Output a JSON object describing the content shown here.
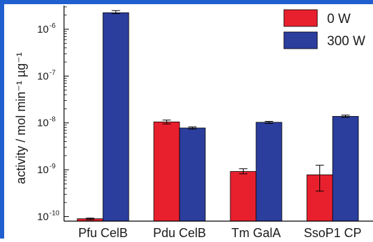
{
  "chart_data": {
    "type": "bar",
    "ylabel": "activity / mol min⁻¹ µg⁻¹",
    "yscale": "log",
    "ylim": [
      8e-11,
      3.2e-06
    ],
    "ytick_values": [
      1e-10,
      1e-09,
      1e-08,
      1e-07,
      1e-06
    ],
    "ytick_exponents": [
      "-10",
      "-9",
      "-8",
      "-7",
      "-6"
    ],
    "ytick_base": "10",
    "categories": [
      "Pfu CelB",
      "Pdu CelB",
      "Tm GalA",
      "SsoP1 CP"
    ],
    "series": [
      {
        "name": "0 W",
        "color": "#e8202e",
        "values": [
          9e-11,
          1.05e-08,
          9.2e-10,
          7.8e-10
        ],
        "err_low": [
          8.6e-11,
          9.5e-09,
          8.2e-10,
          3.5e-10
        ],
        "err_high": [
          9.3e-11,
          1.15e-08,
          1.05e-09,
          1.25e-09
        ]
      },
      {
        "name": "300 W",
        "color": "#2b3e9e",
        "values": [
          2.25e-06,
          7.8e-09,
          1.03e-08,
          1.38e-08
        ],
        "err_low": [
          2.15e-06,
          7.4e-09,
          9.8e-09,
          1.32e-08
        ],
        "err_high": [
          2.5e-06,
          8.2e-09,
          1.08e-08,
          1.47e-08
        ]
      }
    ],
    "legend_position": "top-right",
    "grid": false
  }
}
